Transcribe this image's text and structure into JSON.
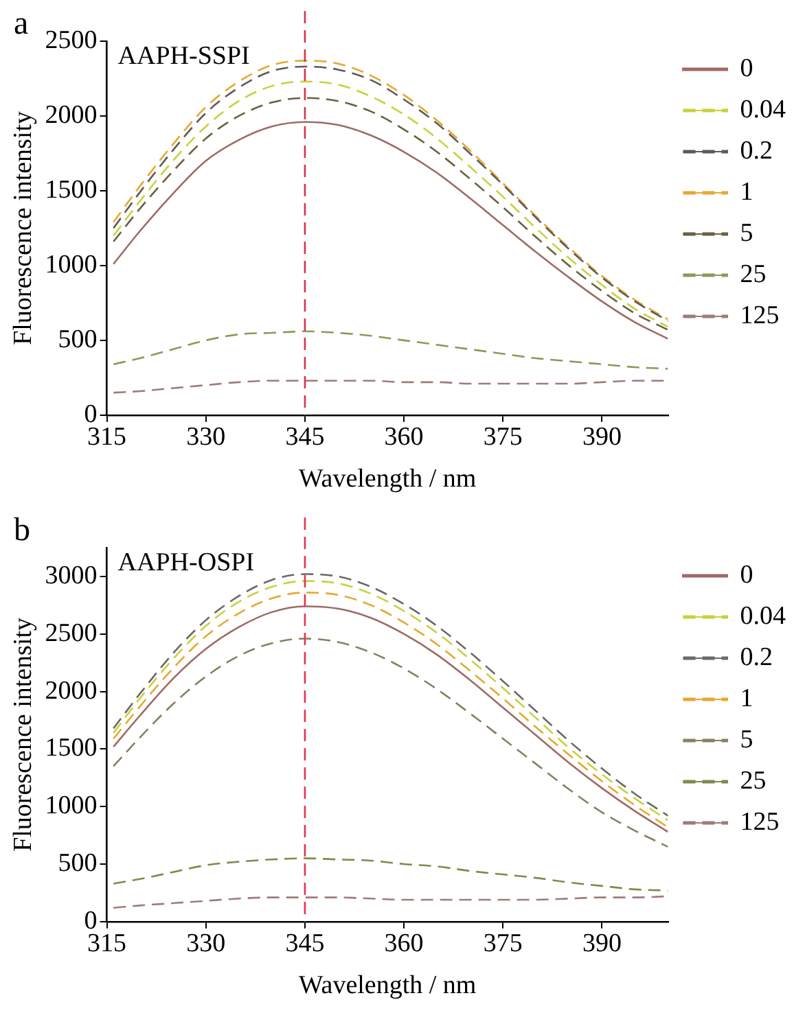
{
  "chart_data": [
    {
      "type": "line",
      "annotations": [
        "a",
        "AAPH-SSPI"
      ],
      "xlabel": "Wavelength / nm",
      "ylabel": "Fluorescence intensity",
      "xlim": [
        315,
        400
      ],
      "xticks": [
        315,
        330,
        345,
        360,
        375,
        390
      ],
      "ylim": [
        0,
        2500
      ],
      "yticks": [
        0,
        500,
        1000,
        1500,
        2000,
        2500
      ],
      "grid": false,
      "legend": "right",
      "marker": "none",
      "x": [
        316,
        320,
        325,
        330,
        335,
        340,
        345,
        350,
        355,
        360,
        365,
        370,
        375,
        380,
        385,
        390,
        395,
        400
      ],
      "ref_lines": [
        {
          "axis": "x",
          "value": 345,
          "color": "#d9334a",
          "line_style": "dashed"
        }
      ],
      "series": [
        {
          "name": "0",
          "color": "#9e6b64",
          "line_style": "solid",
          "values": [
            1010,
            1230,
            1480,
            1700,
            1840,
            1930,
            1960,
            1940,
            1870,
            1760,
            1620,
            1450,
            1270,
            1090,
            920,
            760,
            620,
            510
          ]
        },
        {
          "name": "0.04",
          "color": "#c8d23c",
          "line_style": "dashed",
          "values": [
            1200,
            1430,
            1700,
            1930,
            2100,
            2200,
            2230,
            2210,
            2130,
            2010,
            1850,
            1660,
            1460,
            1250,
            1050,
            870,
            710,
            590
          ]
        },
        {
          "name": "0.2",
          "color": "#5f5a5a",
          "line_style": "dashed",
          "values": [
            1250,
            1490,
            1770,
            2020,
            2190,
            2300,
            2330,
            2310,
            2240,
            2110,
            1950,
            1750,
            1540,
            1320,
            1110,
            920,
            760,
            630
          ]
        },
        {
          "name": "1",
          "color": "#e8a830",
          "line_style": "dashed",
          "values": [
            1290,
            1530,
            1810,
            2060,
            2230,
            2340,
            2370,
            2350,
            2270,
            2140,
            1970,
            1770,
            1550,
            1330,
            1120,
            930,
            770,
            640
          ]
        },
        {
          "name": "5",
          "color": "#6b6040",
          "line_style": "dashed",
          "values": [
            1160,
            1380,
            1630,
            1850,
            2000,
            2090,
            2120,
            2100,
            2030,
            1910,
            1760,
            1580,
            1390,
            1190,
            1000,
            830,
            680,
            570
          ]
        },
        {
          "name": "25",
          "color": "#8a9a5a",
          "line_style": "dashed",
          "values": [
            340,
            380,
            440,
            500,
            540,
            550,
            560,
            550,
            530,
            500,
            470,
            440,
            410,
            380,
            360,
            340,
            320,
            310
          ]
        },
        {
          "name": "125",
          "color": "#a07b78",
          "line_style": "dashed",
          "values": [
            150,
            160,
            180,
            200,
            220,
            230,
            230,
            230,
            230,
            220,
            220,
            210,
            210,
            210,
            210,
            220,
            230,
            230
          ]
        }
      ]
    },
    {
      "type": "line",
      "annotations": [
        "b",
        "AAPH-OSPI"
      ],
      "xlabel": "Wavelength / nm",
      "ylabel": "Fluorescence intensity",
      "xlim": [
        315,
        400
      ],
      "xticks": [
        315,
        330,
        345,
        360,
        375,
        390
      ],
      "ylim": [
        0,
        3250
      ],
      "yticks": [
        0,
        500,
        1000,
        1500,
        2000,
        2500,
        3000
      ],
      "grid": false,
      "legend": "right",
      "marker": "none",
      "x": [
        316,
        320,
        325,
        330,
        335,
        340,
        345,
        350,
        355,
        360,
        365,
        370,
        375,
        380,
        385,
        390,
        395,
        400
      ],
      "ref_lines": [
        {
          "axis": "x",
          "value": 345,
          "color": "#e8334a",
          "line_style": "dashed"
        }
      ],
      "series": [
        {
          "name": "0",
          "color": "#9e6b64",
          "line_style": "solid",
          "values": [
            1520,
            1790,
            2110,
            2370,
            2560,
            2690,
            2740,
            2720,
            2640,
            2500,
            2320,
            2100,
            1860,
            1620,
            1380,
            1160,
            960,
            780
          ]
        },
        {
          "name": "0.04",
          "color": "#c8d23c",
          "line_style": "dashed",
          "values": [
            1640,
            1940,
            2280,
            2570,
            2780,
            2910,
            2960,
            2940,
            2850,
            2700,
            2510,
            2280,
            2030,
            1770,
            1510,
            1280,
            1070,
            880
          ]
        },
        {
          "name": "0.2",
          "color": "#6e6868",
          "line_style": "dashed",
          "values": [
            1680,
            1980,
            2330,
            2620,
            2830,
            2970,
            3020,
            3000,
            2910,
            2760,
            2570,
            2340,
            2090,
            1830,
            1570,
            1330,
            1110,
            920
          ]
        },
        {
          "name": "1",
          "color": "#e8a830",
          "line_style": "dashed",
          "values": [
            1590,
            1870,
            2200,
            2480,
            2680,
            2810,
            2860,
            2840,
            2750,
            2600,
            2410,
            2180,
            1940,
            1690,
            1450,
            1220,
            1010,
            820
          ]
        },
        {
          "name": "5",
          "color": "#8a8060",
          "line_style": "dashed",
          "values": [
            1350,
            1600,
            1890,
            2130,
            2310,
            2420,
            2460,
            2430,
            2340,
            2200,
            2020,
            1810,
            1590,
            1370,
            1150,
            950,
            790,
            650
          ]
        },
        {
          "name": "25",
          "color": "#7f8a4a",
          "line_style": "dashed",
          "values": [
            330,
            370,
            430,
            490,
            520,
            540,
            550,
            540,
            530,
            500,
            480,
            440,
            410,
            380,
            340,
            310,
            280,
            270
          ]
        },
        {
          "name": "125",
          "color": "#a07b78",
          "line_style": "dashed",
          "values": [
            120,
            140,
            160,
            180,
            200,
            210,
            210,
            210,
            200,
            190,
            190,
            190,
            190,
            190,
            200,
            210,
            210,
            220
          ]
        }
      ]
    }
  ]
}
